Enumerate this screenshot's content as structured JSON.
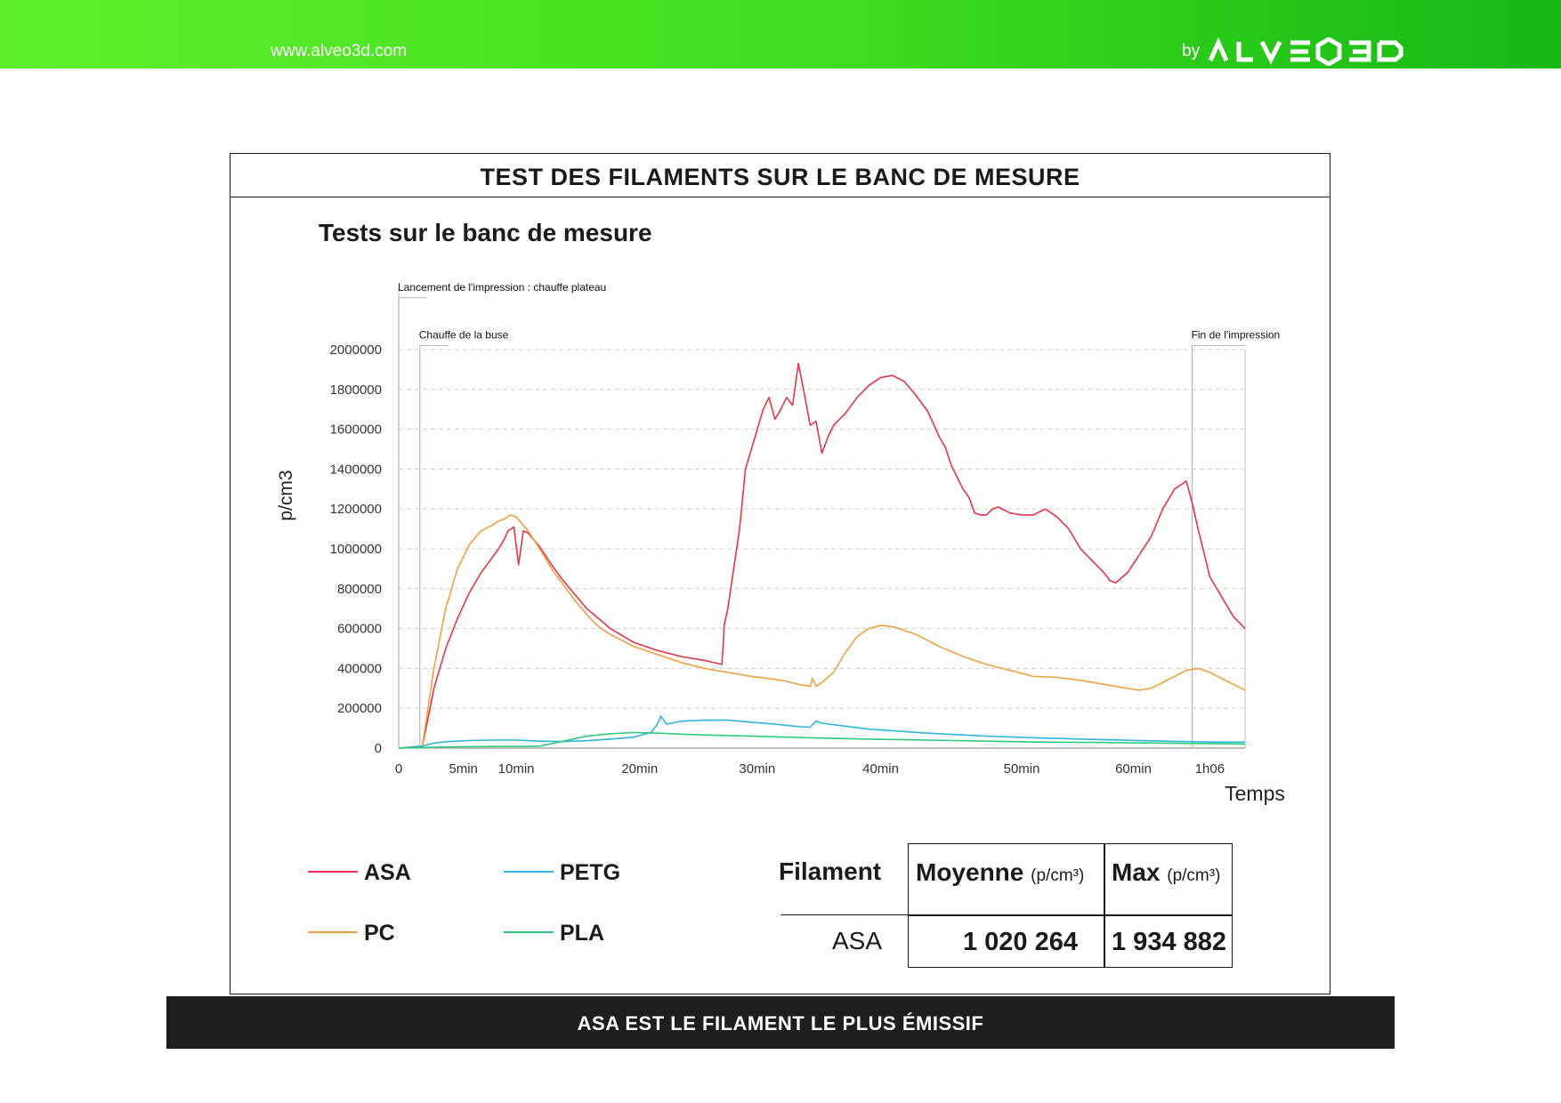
{
  "header": {
    "website": "www.alveo3d.com",
    "by_label": "by",
    "brand": "ALVEO3D",
    "brand_color": "#3fdc1f"
  },
  "card": {
    "heading": "TEST DES FILAMENTS SUR LE BANC DE MESURE"
  },
  "chart_data": {
    "type": "line",
    "title": "Tests sur le banc de mesure",
    "xlabel": "Temps",
    "ylabel": "p/cm3",
    "ylim": [
      0,
      2000000
    ],
    "xlim": [
      0,
      72
    ],
    "grid": true,
    "y_ticks": [
      0,
      200000,
      400000,
      600000,
      800000,
      1000000,
      1200000,
      1400000,
      1600000,
      1800000,
      2000000
    ],
    "y_tick_labels": [
      "0",
      "200000",
      "400000",
      "600000",
      "800000",
      "1000000",
      "1200000",
      "1400000",
      "1600000",
      "1800000",
      "2000000"
    ],
    "x_ticks": [
      {
        "t": 0,
        "label": "0"
      },
      {
        "t": 5.5,
        "label": "5min"
      },
      {
        "t": 10,
        "label": "10min"
      },
      {
        "t": 20.5,
        "label": "20min"
      },
      {
        "t": 30.5,
        "label": "30min"
      },
      {
        "t": 41,
        "label": "40min"
      },
      {
        "t": 53,
        "label": "50min"
      },
      {
        "t": 62.5,
        "label": "60min"
      },
      {
        "t": 69,
        "label": "1h06"
      }
    ],
    "annotations": [
      {
        "t": 0,
        "label": "Lancement de l'impression : chauffe plateau",
        "ymax": 2260000
      },
      {
        "t": 1.8,
        "label": "Chauffe de la buse",
        "ymax": 2020000
      },
      {
        "t": 67.5,
        "label": "Fin de l'impression",
        "ymax": 2020000
      }
    ],
    "series": [
      {
        "name": "ASA",
        "color": "#e8344a",
        "x": [
          0,
          2,
          2.5,
          3,
          4,
          5,
          6,
          7,
          8,
          8.5,
          9,
          9.3,
          9.8,
          10.2,
          10.6,
          11,
          12,
          13,
          14,
          15,
          16,
          17,
          18,
          20,
          22,
          24,
          26,
          27.5,
          27.7,
          28,
          28.5,
          29,
          29.5,
          30,
          30.5,
          31,
          31.5,
          32,
          32.5,
          33,
          33.5,
          34,
          34.5,
          35,
          35.5,
          36,
          36.5,
          37,
          38,
          39,
          40,
          41,
          42,
          43,
          44,
          45,
          46,
          46.5,
          47,
          48,
          48.5,
          49,
          49.5,
          50,
          50.5,
          51,
          52,
          53,
          54,
          55,
          56,
          57,
          58,
          59,
          60,
          60.5,
          61,
          62,
          63,
          64,
          65,
          66,
          67,
          67.5,
          68,
          68.5,
          69,
          70,
          71,
          72
        ],
        "y": [
          0,
          10000,
          150000,
          300000,
          500000,
          650000,
          780000,
          880000,
          960000,
          1000000,
          1050000,
          1090000,
          1110000,
          920000,
          1090000,
          1080000,
          1010000,
          920000,
          840000,
          770000,
          700000,
          650000,
          600000,
          530000,
          490000,
          460000,
          440000,
          420000,
          620000,
          700000,
          900000,
          1100000,
          1400000,
          1500000,
          1600000,
          1700000,
          1760000,
          1650000,
          1700000,
          1760000,
          1720000,
          1930000,
          1780000,
          1620000,
          1640000,
          1480000,
          1560000,
          1620000,
          1680000,
          1760000,
          1820000,
          1860000,
          1870000,
          1840000,
          1770000,
          1690000,
          1560000,
          1510000,
          1420000,
          1300000,
          1260000,
          1180000,
          1170000,
          1170000,
          1200000,
          1210000,
          1180000,
          1170000,
          1170000,
          1200000,
          1160000,
          1100000,
          1000000,
          940000,
          880000,
          840000,
          830000,
          880000,
          970000,
          1060000,
          1200000,
          1300000,
          1340000,
          1230000,
          1100000,
          980000,
          860000,
          760000,
          660000,
          600000
        ]
      },
      {
        "name": "PC",
        "color": "#f0a040",
        "x": [
          0,
          2,
          2.5,
          3,
          4,
          5,
          6,
          7,
          8,
          8.5,
          9,
          9.5,
          10,
          11,
          12,
          13,
          14,
          15,
          16,
          17,
          18,
          20,
          22,
          24,
          26,
          28,
          30,
          32,
          33,
          34,
          35,
          35.2,
          35.5,
          36,
          37,
          38,
          39,
          40,
          41,
          42,
          43,
          44,
          45,
          46,
          48,
          50,
          52,
          54,
          56,
          58,
          60,
          62,
          63,
          64,
          65,
          66,
          67,
          67.5,
          68,
          69,
          70,
          71,
          72
        ],
        "y": [
          0,
          10000,
          200000,
          400000,
          700000,
          900000,
          1020000,
          1090000,
          1120000,
          1140000,
          1150000,
          1170000,
          1160000,
          1090000,
          1000000,
          900000,
          820000,
          740000,
          670000,
          610000,
          570000,
          510000,
          470000,
          430000,
          400000,
          380000,
          360000,
          345000,
          335000,
          320000,
          310000,
          350000,
          310000,
          330000,
          380000,
          480000,
          560000,
          600000,
          615000,
          610000,
          590000,
          570000,
          540000,
          510000,
          460000,
          420000,
          390000,
          360000,
          355000,
          340000,
          320000,
          300000,
          290000,
          300000,
          330000,
          360000,
          390000,
          395000,
          400000,
          380000,
          350000,
          320000,
          290000
        ]
      },
      {
        "name": "PETG",
        "color": "#2fb5dc",
        "x": [
          0,
          2,
          3,
          4,
          6,
          8,
          10,
          12,
          14,
          16,
          18,
          20,
          21.5,
          22,
          22.3,
          22.8,
          24,
          26,
          28,
          30,
          32,
          34,
          35,
          35.5,
          36,
          38,
          40,
          45,
          50,
          55,
          60,
          65,
          70,
          72
        ],
        "y": [
          0,
          10000,
          25000,
          32000,
          38000,
          40000,
          40000,
          35000,
          33000,
          37000,
          45000,
          55000,
          80000,
          120000,
          160000,
          120000,
          135000,
          140000,
          140000,
          130000,
          120000,
          108000,
          105000,
          135000,
          125000,
          110000,
          95000,
          75000,
          60000,
          50000,
          42000,
          35000,
          30000,
          30000
        ]
      },
      {
        "name": "PLA",
        "color": "#2dcc7c",
        "x": [
          0,
          2,
          4,
          6,
          8,
          10,
          12,
          14,
          16,
          18,
          20,
          22,
          24,
          26,
          28,
          30,
          35,
          40,
          45,
          50,
          55,
          60,
          65,
          70,
          72
        ],
        "y": [
          0,
          3000,
          6000,
          7000,
          8000,
          8000,
          10000,
          35000,
          60000,
          72000,
          78000,
          75000,
          70000,
          66000,
          63000,
          60000,
          52000,
          45000,
          40000,
          35000,
          30000,
          28000,
          25000,
          22000,
          20000
        ]
      }
    ]
  },
  "legend": {
    "items": [
      {
        "label": "ASA"
      },
      {
        "label": "PETG"
      },
      {
        "label": "PC"
      },
      {
        "label": "PLA"
      }
    ]
  },
  "table": {
    "col0": "Filament",
    "col1": "Moyenne",
    "col1_unit": "(p/cm³)",
    "col2": "Max",
    "col2_unit": "(p/cm³)",
    "row": {
      "name": "ASA",
      "mean": "1 020 264",
      "max": "1 934 882"
    }
  },
  "footer": {
    "banner": "ASA EST LE FILAMENT LE PLUS ÉMISSIF"
  }
}
